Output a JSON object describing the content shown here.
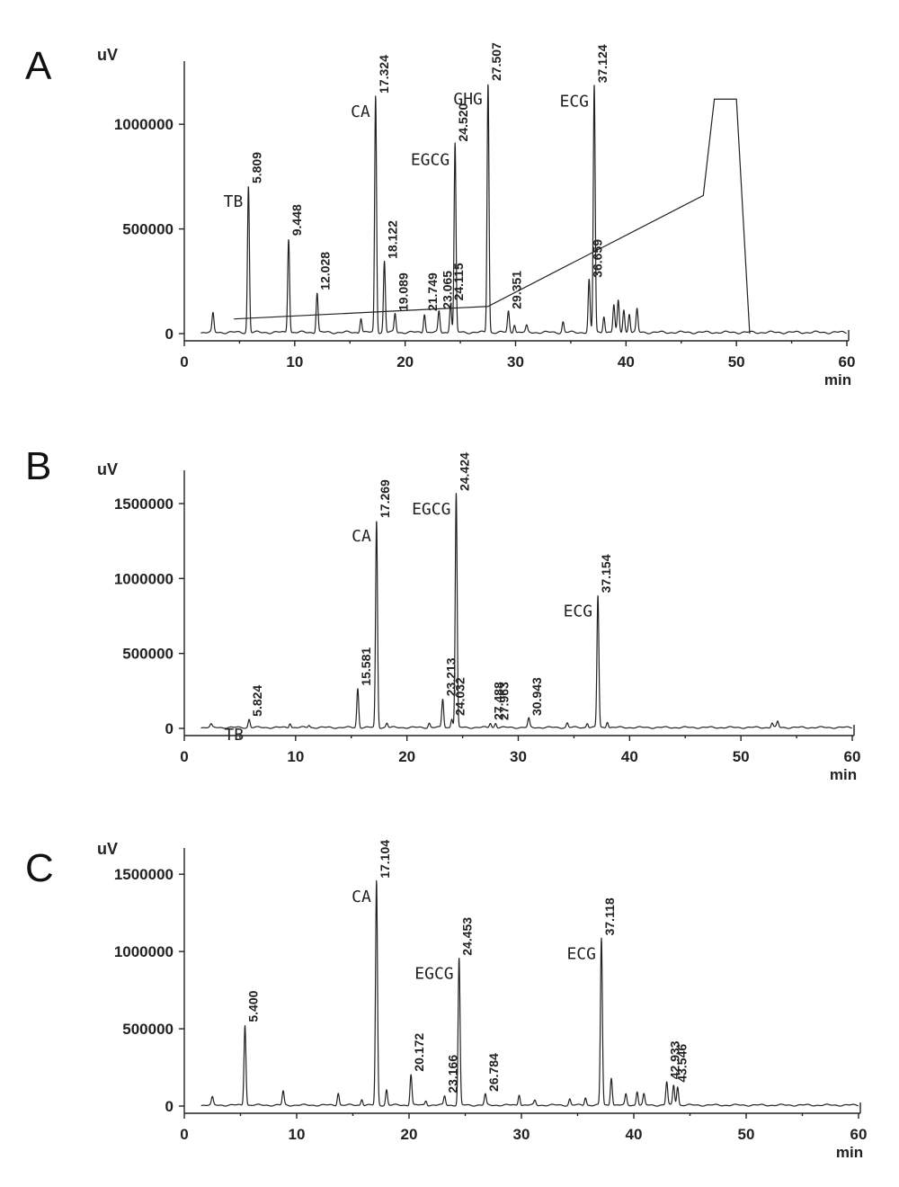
{
  "chart_data": [
    {
      "panel": "A",
      "type": "line",
      "ylabel": "uV",
      "xlabel": "min",
      "xlim": [
        0,
        60
      ],
      "ylim": [
        0,
        1250000
      ],
      "x_ticks": [
        "0",
        "10",
        "20",
        "30",
        "40",
        "50",
        "60"
      ],
      "y_ticks": [
        "0",
        "500000",
        "1000000"
      ],
      "peaks": [
        {
          "rt": 2.6,
          "height": 90000
        },
        {
          "rt": 5.809,
          "height": 700000,
          "label": "5.809",
          "compound": "TB"
        },
        {
          "rt": 9.448,
          "height": 450000,
          "label": "9.448"
        },
        {
          "rt": 12.028,
          "height": 190000,
          "label": "12.028"
        },
        {
          "rt": 16.0,
          "height": 70000
        },
        {
          "rt": 17.324,
          "height": 1130000,
          "label": "17.324",
          "compound": "CA"
        },
        {
          "rt": 18.122,
          "height": 340000,
          "label": "18.122"
        },
        {
          "rt": 19.089,
          "height": 90000,
          "label": "19.089"
        },
        {
          "rt": 21.749,
          "height": 90000,
          "label": "21.749"
        },
        {
          "rt": 23.065,
          "height": 100000,
          "label": "23.065"
        },
        {
          "rt": 24.115,
          "height": 140000,
          "label": "24.115"
        },
        {
          "rt": 24.52,
          "height": 900000,
          "label": "24.520",
          "compound": "EGCG"
        },
        {
          "rt": 27.507,
          "height": 1190000,
          "label": "27.507",
          "compound": "GHG"
        },
        {
          "rt": 29.351,
          "height": 100000,
          "label": "29.351"
        },
        {
          "rt": 29.9,
          "height": 40000
        },
        {
          "rt": 31.0,
          "height": 30000
        },
        {
          "rt": 34.3,
          "height": 50000
        },
        {
          "rt": 36.659,
          "height": 250000,
          "label": "36.659"
        },
        {
          "rt": 37.124,
          "height": 1180000,
          "label": "37.124",
          "compound": "ECG"
        },
        {
          "rt": 38.0,
          "height": 80000
        },
        {
          "rt": 38.9,
          "height": 130000
        },
        {
          "rt": 39.3,
          "height": 150000
        },
        {
          "rt": 39.8,
          "height": 110000
        },
        {
          "rt": 40.3,
          "height": 90000
        },
        {
          "rt": 41.0,
          "height": 110000
        }
      ],
      "gradient_profile": {
        "x": [
          4.5,
          27.5,
          47.0,
          48.0,
          50.0,
          51.2
        ],
        "y": [
          70000,
          130000,
          660000,
          1120000,
          1120000,
          0
        ]
      }
    },
    {
      "panel": "B",
      "type": "line",
      "ylabel": "uV",
      "xlabel": "min",
      "xlim": [
        0,
        60
      ],
      "ylim": [
        0,
        1650000
      ],
      "x_ticks": [
        "0",
        "10",
        "20",
        "30",
        "40",
        "50",
        "60"
      ],
      "y_ticks": [
        "0",
        "500000",
        "1000000",
        "1500000"
      ],
      "peaks": [
        {
          "rt": 2.4,
          "height": 20000
        },
        {
          "rt": 5.824,
          "height": 55000,
          "label": "5.824",
          "compound": "TB"
        },
        {
          "rt": 9.5,
          "height": 30000
        },
        {
          "rt": 11.2,
          "height": 15000
        },
        {
          "rt": 15.581,
          "height": 260000,
          "label": "15.581"
        },
        {
          "rt": 17.269,
          "height": 1380000,
          "label": "17.269",
          "compound": "CA"
        },
        {
          "rt": 18.2,
          "height": 30000
        },
        {
          "rt": 22.0,
          "height": 30000
        },
        {
          "rt": 23.213,
          "height": 190000,
          "label": "23.213"
        },
        {
          "rt": 24.032,
          "height": 60000,
          "label": "24.032"
        },
        {
          "rt": 24.424,
          "height": 1560000,
          "label": "24.424",
          "compound": "EGCG"
        },
        {
          "rt": 27.488,
          "height": 30000,
          "label": "27.488"
        },
        {
          "rt": 27.963,
          "height": 30000,
          "label": "27.963"
        },
        {
          "rt": 30.943,
          "height": 60000,
          "label": "30.943"
        },
        {
          "rt": 34.4,
          "height": 30000
        },
        {
          "rt": 36.2,
          "height": 30000
        },
        {
          "rt": 37.154,
          "height": 880000,
          "label": "37.154",
          "compound": "ECG"
        },
        {
          "rt": 38.0,
          "height": 40000
        },
        {
          "rt": 52.8,
          "height": 30000
        },
        {
          "rt": 53.3,
          "height": 40000
        }
      ]
    },
    {
      "panel": "C",
      "type": "line",
      "ylabel": "uV",
      "xlabel": "min",
      "xlim": [
        0,
        60
      ],
      "ylim": [
        0,
        1600000
      ],
      "x_ticks": [
        "0",
        "10",
        "20",
        "30",
        "40",
        "50",
        "60"
      ],
      "y_ticks": [
        "0",
        "500000",
        "1000000",
        "1500000"
      ],
      "peaks": [
        {
          "rt": 2.5,
          "height": 50000
        },
        {
          "rt": 5.4,
          "height": 520000,
          "label": "5.400"
        },
        {
          "rt": 8.8,
          "height": 90000
        },
        {
          "rt": 13.7,
          "height": 80000
        },
        {
          "rt": 15.8,
          "height": 40000
        },
        {
          "rt": 17.104,
          "height": 1450000,
          "label": "17.104",
          "compound": "CA"
        },
        {
          "rt": 18.0,
          "height": 100000
        },
        {
          "rt": 20.172,
          "height": 200000,
          "label": "20.172"
        },
        {
          "rt": 21.5,
          "height": 30000
        },
        {
          "rt": 23.166,
          "height": 60000,
          "label": "23.166"
        },
        {
          "rt": 24.453,
          "height": 950000,
          "label": "24.453",
          "compound": "EGCG"
        },
        {
          "rt": 26.784,
          "height": 70000,
          "label": "26.784"
        },
        {
          "rt": 29.8,
          "height": 70000
        },
        {
          "rt": 31.2,
          "height": 30000
        },
        {
          "rt": 34.3,
          "height": 40000
        },
        {
          "rt": 35.7,
          "height": 50000
        },
        {
          "rt": 37.118,
          "height": 1080000,
          "label": "37.118",
          "compound": "ECG"
        },
        {
          "rt": 38.0,
          "height": 180000
        },
        {
          "rt": 39.3,
          "height": 70000
        },
        {
          "rt": 40.3,
          "height": 90000
        },
        {
          "rt": 40.9,
          "height": 70000
        },
        {
          "rt": 42.933,
          "height": 150000,
          "label": "42.933"
        },
        {
          "rt": 43.546,
          "height": 130000,
          "label": "43.546"
        },
        {
          "rt": 43.9,
          "height": 120000
        }
      ]
    }
  ]
}
